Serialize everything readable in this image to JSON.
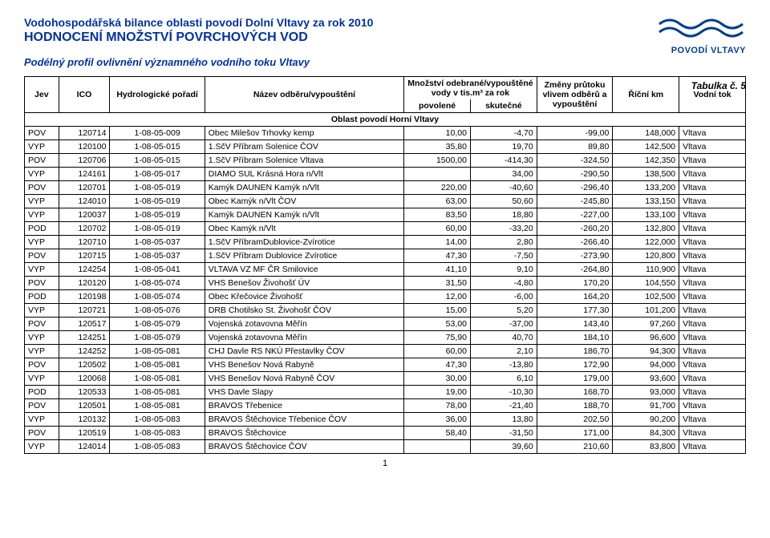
{
  "header": {
    "title1": "Vodohospodářská bilance oblasti povodí Dolní Vltavy za rok 2010",
    "title2": "HODNOCENÍ MNOŽSTVÍ POVRCHOVÝCH VOD",
    "subtitle": "Podélný profil ovlivnění významného vodního toku Vltavy",
    "tabulka": "Tabulka č. 5",
    "logo_text": "POVODÍ VLTAVY"
  },
  "table": {
    "header_super_qty": "Množství odebrané/vypouštěné vody v tis.m³ za rok",
    "header_super_change": "Změny průtoku vlivem odběrů a vypouštění",
    "cols": {
      "jev": "Jev",
      "ico": "ICO",
      "hydro": "Hydrologické pořadí",
      "nazev": "Název odběru/vypouštění",
      "povolene": "povolené",
      "skutecne": "skutečné",
      "ricni_km": "Říční km",
      "vodni_tok": "Vodní tok"
    },
    "section": "Oblast povodí Horní Vltavy",
    "rows": [
      [
        "POV",
        "120714",
        "1-08-05-009",
        "Obec Milešov Trhovky kemp",
        "10,00",
        "-4,70",
        "-99,00",
        "148,000",
        "Vltava"
      ],
      [
        "VYP",
        "120100",
        "1-08-05-015",
        "1.SčV Příbram Solenice ČOV",
        "35,80",
        "19,70",
        "89,80",
        "142,500",
        "Vltava"
      ],
      [
        "POV",
        "120706",
        "1-08-05-015",
        "1.SčV Příbram Solenice Vltava",
        "1500,00",
        "-414,30",
        "-324,50",
        "142,350",
        "Vltava"
      ],
      [
        "VYP",
        "124161",
        "1-08-05-017",
        "DIAMO SUL Krásná Hora n/Vlt",
        "",
        "34,00",
        "-290,50",
        "138,500",
        "Vltava"
      ],
      [
        "POV",
        "120701",
        "1-08-05-019",
        "Kamýk DAUNEN Kamýk n/Vlt",
        "220,00",
        "-40,60",
        "-296,40",
        "133,200",
        "Vltava"
      ],
      [
        "VYP",
        "124010",
        "1-08-05-019",
        "Obec Kamýk n/Vlt ČOV",
        "63,00",
        "50,60",
        "-245,80",
        "133,150",
        "Vltava"
      ],
      [
        "VYP",
        "120037",
        "1-08-05-019",
        "Kamýk DAUNEN Kamýk n/Vlt",
        "83,50",
        "18,80",
        "-227,00",
        "133,100",
        "Vltava"
      ],
      [
        "POD",
        "120702",
        "1-08-05-019",
        "Obec Kamýk n/Vlt",
        "60,00",
        "-33,20",
        "-260,20",
        "132,800",
        "Vltava"
      ],
      [
        "VYP",
        "120710",
        "1-08-05-037",
        "1.SčV PříbramDublovice-Zvírotice",
        "14,00",
        "2,80",
        "-266,40",
        "122,000",
        "Vltava"
      ],
      [
        "POV",
        "120715",
        "1-08-05-037",
        "1.SčV Příbram Dublovice Zvírotice",
        "47,30",
        "-7,50",
        "-273,90",
        "120,800",
        "Vltava"
      ],
      [
        "VYP",
        "124254",
        "1-08-05-041",
        "VLTAVA VZ MF ČR Smilovice",
        "41,10",
        "9,10",
        "-264,80",
        "110,900",
        "Vltava"
      ],
      [
        "POV",
        "120120",
        "1-08-05-074",
        "VHS Benešov Živohošť ÚV",
        "31,50",
        "-4,80",
        "170,20",
        "104,550",
        "Vltava"
      ],
      [
        "POD",
        "120198",
        "1-08-05-074",
        "Obec Křečovice Živohošť",
        "12,00",
        "-6,00",
        "164,20",
        "102,500",
        "Vltava"
      ],
      [
        "VYP",
        "120721",
        "1-08-05-076",
        "DRB Chotilsko St. Živohošť ČOV",
        "15,00",
        "5,20",
        "177,30",
        "101,200",
        "Vltava"
      ],
      [
        "POV",
        "120517",
        "1-08-05-079",
        "Vojenská zotavovna Měřín",
        "53,00",
        "-37,00",
        "143,40",
        "97,260",
        "Vltava"
      ],
      [
        "VYP",
        "124251",
        "1-08-05-079",
        "Vojenská zotavovna Měřín",
        "75,90",
        "40,70",
        "184,10",
        "96,600",
        "Vltava"
      ],
      [
        "VYP",
        "124252",
        "1-08-05-081",
        "CHJ Davle RS NKÚ Přestavlky ČOV",
        "60,00",
        "2,10",
        "186,70",
        "94,300",
        "Vltava"
      ],
      [
        "POV",
        "120502",
        "1-08-05-081",
        "VHS Benešov Nová Rabyně",
        "47,30",
        "-13,80",
        "172,90",
        "94,000",
        "Vltava"
      ],
      [
        "VYP",
        "120068",
        "1-08-05-081",
        "VHS Benešov Nová Rabyně ČOV",
        "30,00",
        "6,10",
        "179,00",
        "93,600",
        "Vltava"
      ],
      [
        "POD",
        "120533",
        "1-08-05-081",
        "VHS Davle Slapy",
        "19,00",
        "-10,30",
        "168,70",
        "93,000",
        "Vltava"
      ],
      [
        "POV",
        "120501",
        "1-08-05-081",
        "BRAVOS Třebenice",
        "78,00",
        "-21,40",
        "188,70",
        "91,700",
        "Vltava"
      ],
      [
        "VYP",
        "120132",
        "1-08-05-083",
        "BRAVOS Štěchovice Třebenice ČOV",
        "36,00",
        "13,80",
        "202,50",
        "90,200",
        "Vltava"
      ],
      [
        "POV",
        "120519",
        "1-08-05-083",
        "BRAVOS Štěchovice",
        "58,40",
        "-31,50",
        "171,00",
        "84,300",
        "Vltava"
      ],
      [
        "VYP",
        "124014",
        "1-08-05-083",
        "BRAVOS Štěchovice ČOV",
        "",
        "39,60",
        "210,60",
        "83,800",
        "Vltava"
      ]
    ]
  },
  "page_num": "1",
  "style": {
    "header_color": "#003399",
    "logo_color": "#003f8a",
    "border_color": "#000000",
    "font_size_body": 10.5,
    "font_size_title1": 14,
    "font_size_title2": 16
  }
}
